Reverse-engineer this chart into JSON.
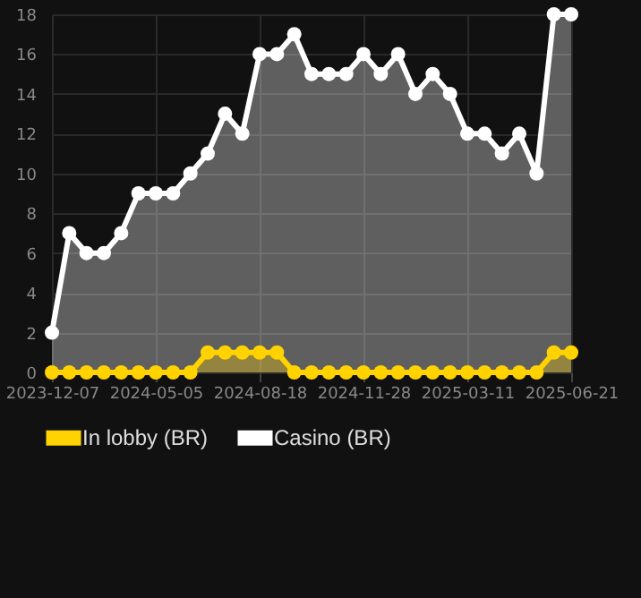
{
  "chart_data": {
    "type": "area",
    "categories": [
      "2023-12-07",
      null,
      null,
      null,
      null,
      null,
      "2024-05-05",
      null,
      null,
      null,
      null,
      null,
      "2024-08-18",
      null,
      null,
      null,
      null,
      null,
      "2024-11-28",
      null,
      null,
      null,
      null,
      null,
      "2025-03-11",
      null,
      null,
      null,
      null,
      null,
      "2025-06-21"
    ],
    "series": [
      {
        "name": "In lobby (BR)",
        "color": "#ffd200",
        "values": [
          0,
          0,
          0,
          0,
          0,
          0,
          0,
          0,
          0,
          1,
          1,
          1,
          1,
          1,
          0,
          0,
          0,
          0,
          0,
          0,
          0,
          0,
          0,
          0,
          0,
          0,
          0,
          0,
          0,
          1,
          1
        ]
      },
      {
        "name": "Casino (BR)",
        "color": "#ffffff",
        "values": [
          2,
          7,
          6,
          6,
          7,
          9,
          9,
          9,
          10,
          11,
          13,
          12,
          16,
          16,
          17,
          15,
          15,
          15,
          16,
          15,
          16,
          14,
          15,
          14,
          12,
          12,
          11,
          12,
          10,
          18,
          18
        ]
      }
    ],
    "ylim": [
      0,
      18
    ],
    "yticks": [
      0,
      2,
      4,
      6,
      8,
      10,
      12,
      14,
      16,
      18
    ],
    "grid": true,
    "legend": "bottom",
    "marker": "circle",
    "line_style": "solid"
  }
}
